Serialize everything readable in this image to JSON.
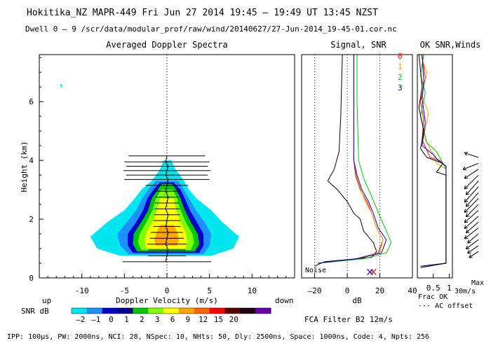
{
  "header": {
    "title": "Hokitika_NZ  MAPR-449  Fri Jun 27 2014 19:45 – 19:49 UT 13:45 NZST",
    "dwell": "Dwell  0 – 9   /scr/data/modular_prof/raw/wind/20140627/27-Jun-2014_19-45-01.cor.nc"
  },
  "footer": {
    "params": "IPP: 100µs,  PW: 2000ns,  NCI:  28,  NSpec: 10, NHts: 50,  Dly: 2500ns,  Space: 1000ns,  Code: 4,  Npts: 256",
    "fca": "FCA Filter B2 12m/s"
  },
  "chart_data": [
    {
      "type": "heatmap",
      "title": "Averaged Doppler Spectra",
      "xlabel": "Doppler Velocity (m/s)",
      "ylabel": "Height (km)",
      "xlim": [
        -15,
        15
      ],
      "ylim": [
        0,
        7.6
      ],
      "x_ticks": [
        -10,
        -5,
        0,
        5,
        10
      ],
      "y_ticks": [
        0,
        2,
        4,
        6
      ],
      "x_direction_labels": {
        "left": "up",
        "right": "down"
      },
      "colorbar": {
        "label": "SNR dB",
        "ticks": [
          -2,
          -1,
          0,
          1,
          2,
          3,
          6,
          9,
          12,
          15,
          20
        ],
        "colors": [
          "#00e5ee",
          "#1e90ff",
          "#0000cd",
          "#00008b",
          "#00c800",
          "#7fff00",
          "#ffff00",
          "#ffa500",
          "#ff6600",
          "#ff0000",
          "#5a0000",
          "#200018",
          "#6a00a8"
        ]
      },
      "contour_bands": [
        {
          "level": -2,
          "color": "#00e5ee",
          "rows": [
            [
              0.75,
              -5.5,
              5.2
            ],
            [
              1.0,
              -8.2,
              7.8
            ],
            [
              1.4,
              -9.0,
              8.5
            ],
            [
              1.9,
              -7.0,
              6.5
            ],
            [
              2.3,
              -5.0,
              5.2
            ],
            [
              2.7,
              -3.8,
              3.5
            ],
            [
              3.0,
              -3.0,
              2.6
            ],
            [
              3.3,
              -1.8,
              2.0
            ],
            [
              3.7,
              -0.8,
              1.0
            ],
            [
              4.0,
              -0.4,
              0.5
            ]
          ]
        },
        {
          "level": -1,
          "color": "#1e90ff",
          "rows": [
            [
              0.8,
              -4.5,
              4.3
            ],
            [
              1.1,
              -5.5,
              5.0
            ],
            [
              1.5,
              -5.8,
              5.2
            ],
            [
              1.9,
              -4.7,
              4.4
            ],
            [
              2.3,
              -3.6,
              3.4
            ],
            [
              2.7,
              -2.9,
              2.6
            ],
            [
              3.0,
              -2.2,
              2.0
            ],
            [
              3.3,
              -1.3,
              1.3
            ]
          ]
        },
        {
          "level": 0,
          "color": "#0000cd",
          "rows": [
            [
              0.85,
              -4.0,
              3.8
            ],
            [
              1.1,
              -4.6,
              4.3
            ],
            [
              1.5,
              -4.6,
              4.3
            ],
            [
              1.9,
              -3.6,
              3.5
            ],
            [
              2.3,
              -2.8,
              2.7
            ],
            [
              2.7,
              -2.3,
              2.1
            ],
            [
              3.0,
              -1.6,
              1.6
            ],
            [
              3.25,
              -0.8,
              0.8
            ]
          ]
        },
        {
          "level": 1,
          "color": "#00c800",
          "rows": [
            [
              0.9,
              -3.5,
              3.3
            ],
            [
              1.15,
              -4.0,
              3.8
            ],
            [
              1.5,
              -3.9,
              3.6
            ],
            [
              1.9,
              -3.0,
              2.8
            ],
            [
              2.3,
              -2.2,
              2.1
            ],
            [
              2.7,
              -1.8,
              1.6
            ],
            [
              3.0,
              -1.1,
              1.1
            ],
            [
              3.2,
              -0.6,
              0.6
            ]
          ]
        },
        {
          "level": 2,
          "color": "#7fff00",
          "rows": [
            [
              0.95,
              -3.0,
              2.8
            ],
            [
              1.2,
              -3.4,
              3.2
            ],
            [
              1.5,
              -3.2,
              3.0
            ],
            [
              1.9,
              -2.4,
              2.2
            ],
            [
              2.3,
              -1.7,
              1.6
            ],
            [
              2.7,
              -1.3,
              1.2
            ],
            [
              3.0,
              -0.7,
              0.7
            ]
          ]
        },
        {
          "level": 3,
          "color": "#ffff00",
          "rows": [
            [
              1.0,
              -2.4,
              2.2
            ],
            [
              1.25,
              -2.6,
              2.4
            ],
            [
              1.55,
              -2.4,
              2.2
            ],
            [
              1.9,
              -1.7,
              1.6
            ],
            [
              2.3,
              -1.2,
              1.1
            ],
            [
              2.7,
              -0.8,
              0.8
            ]
          ]
        },
        {
          "level": 6,
          "color": "#ffa500",
          "rows": [
            [
              1.1,
              -1.3,
              1.2
            ],
            [
              1.3,
              -1.5,
              1.4
            ],
            [
              1.55,
              -1.2,
              1.2
            ],
            [
              1.8,
              -0.8,
              0.8
            ]
          ]
        }
      ],
      "annotation_bars": {
        "heights": [
          0.55,
          0.75,
          0.95,
          1.15,
          1.35,
          1.55,
          1.75,
          1.95,
          2.15,
          2.35,
          2.55,
          2.75,
          2.95,
          3.15,
          3.35,
          3.5,
          3.65,
          3.8,
          3.95,
          4.15
        ],
        "half_widths": [
          5.2,
          2.2,
          2.2,
          2.3,
          2.0,
          1.9,
          1.6,
          1.6,
          1.5,
          1.5,
          1.4,
          1.4,
          1.6,
          2.5,
          5.0,
          4.8,
          5.1,
          4.8,
          5.0,
          4.5
        ]
      }
    },
    {
      "type": "line",
      "title": "Signal, SNR",
      "xlabel": "dB",
      "xlim": [
        -28,
        40
      ],
      "ylim": [
        0,
        7.6
      ],
      "x_ticks": [
        -20,
        0,
        20,
        40
      ],
      "x_tick_labels": [
        "–20",
        "0",
        "20",
        "40"
      ],
      "noise_label": "Noise",
      "legend": [
        "0",
        "1",
        "2",
        "3"
      ],
      "series": [
        {
          "name": "noise",
          "color": "#000000",
          "points": [
            [
              -20,
              7.6
            ],
            [
              -20,
              0
            ]
          ]
        },
        {
          "name": "signal",
          "color": "#000000",
          "points": [
            [
              -3,
              7.6
            ],
            [
              -4,
              5.5
            ],
            [
              -5,
              4.3
            ],
            [
              -8,
              3.7
            ],
            [
              -12,
              3.3
            ],
            [
              -6,
              3.0
            ],
            [
              0,
              2.6
            ],
            [
              4,
              2.2
            ],
            [
              8,
              2.0
            ],
            [
              10,
              1.6
            ],
            [
              16,
              1.2
            ],
            [
              18,
              0.9
            ],
            [
              15,
              0.7
            ],
            [
              -14,
              0.55
            ],
            [
              -20,
              0.4
            ]
          ]
        },
        {
          "name": "0",
          "color": "#ff0000",
          "points": [
            [
              4,
              7.6
            ],
            [
              4,
              6.0
            ],
            [
              4,
              4.0
            ],
            [
              5,
              3.5
            ],
            [
              8,
              3.0
            ],
            [
              12,
              2.6
            ],
            [
              15,
              2.2
            ],
            [
              18,
              1.7
            ],
            [
              22,
              1.3
            ],
            [
              19,
              0.85
            ],
            [
              5,
              0.65
            ],
            [
              -18,
              0.5
            ]
          ]
        },
        {
          "name": "1",
          "color": "#ffa500",
          "points": [
            [
              4,
              7.6
            ],
            [
              4,
              6.0
            ],
            [
              4,
              4.0
            ],
            [
              6,
              3.4
            ],
            [
              9,
              2.9
            ],
            [
              12,
              2.5
            ],
            [
              15,
              2.2
            ],
            [
              18,
              1.7
            ],
            [
              22,
              1.3
            ],
            [
              20,
              0.85
            ],
            [
              6,
              0.65
            ],
            [
              -18,
              0.5
            ]
          ]
        },
        {
          "name": "2",
          "color": "#00c800",
          "points": [
            [
              6,
              7.6
            ],
            [
              6,
              6.0
            ],
            [
              7,
              4.0
            ],
            [
              10,
              3.4
            ],
            [
              14,
              2.9
            ],
            [
              17,
              2.5
            ],
            [
              20,
              2.1
            ],
            [
              24,
              1.6
            ],
            [
              27,
              1.2
            ],
            [
              24,
              0.85
            ],
            [
              10,
              0.65
            ],
            [
              -18,
              0.5
            ]
          ]
        },
        {
          "name": "3",
          "color": "#0000cd",
          "points": [
            [
              4,
              7.6
            ],
            [
              4,
              6.0
            ],
            [
              4,
              4.0
            ],
            [
              6,
              3.5
            ],
            [
              9,
              3.0
            ],
            [
              13,
              2.6
            ],
            [
              16,
              2.2
            ],
            [
              19,
              1.7
            ],
            [
              24,
              1.3
            ],
            [
              21,
              0.85
            ],
            [
              6,
              0.65
            ],
            [
              -18,
              0.5
            ]
          ]
        }
      ],
      "markers": [
        {
          "x": 14,
          "y": 0.2,
          "color": "#0000cd"
        },
        {
          "x": 16,
          "y": 0.2,
          "color": "#ff0000"
        }
      ]
    },
    {
      "type": "line",
      "title": "OK SNR,Winds",
      "xlabel": "Frac OK",
      "xlim": [
        0,
        1.1
      ],
      "ylim": [
        0,
        7.6
      ],
      "x_ticks": [
        0.5,
        1
      ],
      "x_tick_labels": [
        "0.5",
        "1"
      ],
      "ac_offset_label": "··· AC offset",
      "wind_scale_label": "Max 30m/s",
      "series": [
        {
          "name": "0",
          "color": "#ff0000",
          "points": [
            [
              0.15,
              7.6
            ],
            [
              0.25,
              6.8
            ],
            [
              0.1,
              6.0
            ],
            [
              0.2,
              5.4
            ],
            [
              0.15,
              4.7
            ],
            [
              0.4,
              4.1
            ],
            [
              0.7,
              4.0
            ],
            [
              0.9,
              3.8
            ],
            [
              0.9,
              0.5
            ],
            [
              0.1,
              0.4
            ]
          ]
        },
        {
          "name": "1",
          "color": "#ffa500",
          "points": [
            [
              0.1,
              7.6
            ],
            [
              0.3,
              7.0
            ],
            [
              0.15,
              6.2
            ],
            [
              0.35,
              5.6
            ],
            [
              0.2,
              4.8
            ],
            [
              0.5,
              4.2
            ],
            [
              0.6,
              3.9
            ],
            [
              0.9,
              3.7
            ],
            [
              0.9,
              0.5
            ],
            [
              0.15,
              0.4
            ]
          ]
        },
        {
          "name": "2",
          "color": "#00c800",
          "points": [
            [
              0.2,
              7.6
            ],
            [
              0.1,
              6.9
            ],
            [
              0.25,
              6.3
            ],
            [
              0.1,
              5.5
            ],
            [
              0.3,
              4.6
            ],
            [
              0.6,
              4.3
            ],
            [
              0.8,
              3.9
            ],
            [
              0.9,
              3.7
            ],
            [
              0.9,
              0.5
            ],
            [
              0.2,
              0.4
            ]
          ]
        },
        {
          "name": "3",
          "color": "#0000cd",
          "points": [
            [
              0.15,
              7.6
            ],
            [
              0.2,
              6.7
            ],
            [
              0.15,
              6.1
            ],
            [
              0.25,
              5.3
            ],
            [
              0.15,
              4.5
            ],
            [
              0.5,
              4.2
            ],
            [
              0.65,
              4.0
            ],
            [
              0.9,
              3.8
            ],
            [
              0.9,
              0.5
            ],
            [
              0.12,
              0.4
            ]
          ]
        },
        {
          "name": "black",
          "color": "#000000",
          "points": [
            [
              0.05,
              7.6
            ],
            [
              0.15,
              6.5
            ],
            [
              0.05,
              5.8
            ],
            [
              0.2,
              5.0
            ],
            [
              0.1,
              4.4
            ],
            [
              0.3,
              4.1
            ],
            [
              0.8,
              3.9
            ],
            [
              0.6,
              3.6
            ],
            [
              0.9,
              3.5
            ],
            [
              0.9,
              0.5
            ],
            [
              0.1,
              0.35
            ]
          ]
        }
      ],
      "wind_barbs": {
        "heights": [
          0.9,
          1.1,
          1.3,
          1.5,
          1.7,
          1.9,
          2.1,
          2.3,
          2.5,
          2.7,
          2.9,
          3.1,
          3.3,
          3.5,
          3.7,
          3.9,
          4.1
        ],
        "u": [
          -0.6,
          -0.7,
          -0.8,
          -0.7,
          -0.9,
          -0.8,
          -0.9,
          -0.9,
          -0.8,
          -0.9,
          -0.8,
          -0.9,
          -0.8,
          -0.9,
          -0.9,
          -1.0,
          -0.9
        ],
        "v": [
          -0.4,
          -0.5,
          -0.6,
          -0.6,
          -0.7,
          -0.7,
          -0.8,
          -0.8,
          -0.8,
          -0.9,
          -0.9,
          -1.0,
          -0.9,
          -0.9,
          -0.6,
          -0.4,
          0.3
        ]
      }
    }
  ]
}
